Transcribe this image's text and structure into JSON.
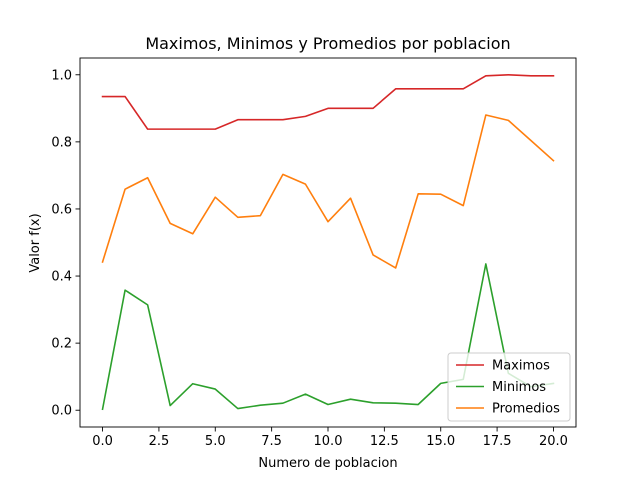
{
  "chart_data": {
    "type": "line",
    "title": "Maximos, Minimos y Promedios por poblacion",
    "xlabel": "Numero de poblacion",
    "ylabel": "Valor f(x)",
    "xlim": [
      -1.0,
      21.0
    ],
    "ylim": [
      -0.05,
      1.05
    ],
    "xticks": [
      0.0,
      2.5,
      5.0,
      7.5,
      10.0,
      12.5,
      15.0,
      17.5,
      20.0
    ],
    "xtick_labels": [
      "0.0",
      "2.5",
      "5.0",
      "7.5",
      "10.0",
      "12.5",
      "15.0",
      "17.5",
      "20.0"
    ],
    "yticks": [
      0.0,
      0.2,
      0.4,
      0.6,
      0.8,
      1.0
    ],
    "ytick_labels": [
      "0.0",
      "0.2",
      "0.4",
      "0.6",
      "0.8",
      "1.0"
    ],
    "grid": false,
    "legend_position": "lower right",
    "x": [
      0,
      1,
      2,
      3,
      4,
      5,
      6,
      7,
      8,
      9,
      10,
      11,
      12,
      13,
      14,
      15,
      16,
      17,
      18,
      19,
      20
    ],
    "series": [
      {
        "name": "Maximos",
        "color": "#d62728",
        "values": [
          0.935,
          0.935,
          0.838,
          0.838,
          0.838,
          0.838,
          0.866,
          0.866,
          0.866,
          0.876,
          0.9,
          0.9,
          0.9,
          0.958,
          0.958,
          0.958,
          0.958,
          0.997,
          1.0,
          0.997,
          0.997
        ]
      },
      {
        "name": "Minimos",
        "color": "#2ca02c",
        "values": [
          0.003,
          0.358,
          0.314,
          0.014,
          0.079,
          0.063,
          0.005,
          0.015,
          0.021,
          0.048,
          0.017,
          0.033,
          0.022,
          0.021,
          0.017,
          0.08,
          0.092,
          0.436,
          0.11,
          0.07,
          0.08
        ]
      },
      {
        "name": "Promedios",
        "color": "#ff7f0e",
        "values": [
          0.442,
          0.659,
          0.693,
          0.557,
          0.526,
          0.635,
          0.575,
          0.58,
          0.703,
          0.674,
          0.562,
          0.632,
          0.463,
          0.424,
          0.645,
          0.644,
          0.61,
          0.88,
          0.864,
          0.804,
          0.744
        ]
      }
    ]
  }
}
